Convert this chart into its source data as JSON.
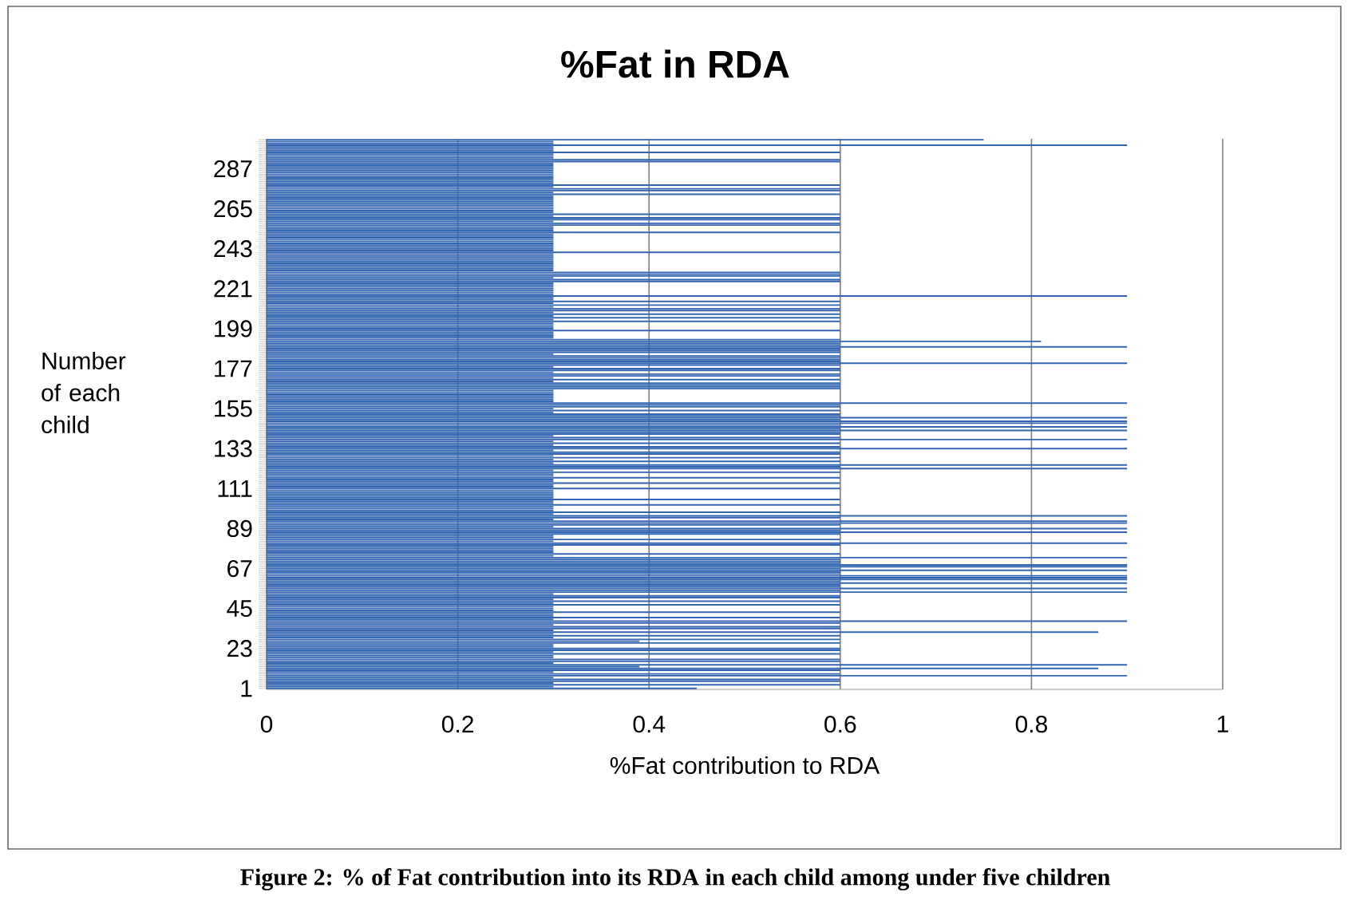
{
  "chart_data": {
    "type": "bar",
    "orientation": "horizontal",
    "title": "%Fat in RDA",
    "xlabel": "%Fat contribution to RDA",
    "ylabel": "Number of each child",
    "annotations": [
      "Figure 2: % of Fat contribution into its RDA in each child among under five children"
    ],
    "color": "#3465b0",
    "grid": "x",
    "xlim": [
      0,
      1
    ],
    "xticks": [
      0,
      0.2,
      0.4,
      0.6,
      0.8,
      1
    ],
    "categories": [
      null,
      null,
      null,
      null,
      null,
      null,
      null,
      null,
      null,
      null,
      null,
      null,
      null,
      null,
      null,
      null,
      "287",
      null,
      null,
      null,
      null,
      null,
      null,
      null,
      null,
      null,
      null,
      null,
      null,
      null,
      null,
      null,
      null,
      null,
      null,
      null,
      null,
      null,
      "265",
      null,
      null,
      null,
      null,
      null,
      null,
      null,
      null,
      null,
      null,
      null,
      null,
      null,
      null,
      null,
      null,
      null,
      null,
      null,
      null,
      null,
      "243",
      null,
      null,
      null,
      null,
      null,
      null,
      null,
      null,
      null,
      null,
      null,
      null,
      null,
      null,
      null,
      null,
      null,
      null,
      null,
      null,
      null,
      "221",
      null,
      null,
      null,
      null,
      null,
      null,
      null,
      null,
      null,
      null,
      null,
      null,
      null,
      null,
      null,
      null,
      null,
      null,
      null,
      null,
      null,
      "199",
      null,
      null,
      null,
      null,
      null,
      null,
      null,
      null,
      null,
      null,
      null,
      null,
      null,
      null,
      null,
      null,
      null,
      null,
      null,
      null,
      null,
      "177",
      null,
      null,
      null,
      null,
      null,
      null,
      null,
      null,
      null,
      null,
      null,
      null,
      null,
      null,
      null,
      null,
      null,
      null,
      null,
      null,
      null,
      "155",
      null,
      null,
      null,
      null,
      null,
      null,
      null,
      null,
      null,
      null,
      null,
      null,
      null,
      null,
      null,
      null,
      null,
      null,
      null,
      null,
      null,
      "133",
      null,
      null,
      null,
      null,
      null,
      null,
      null,
      null,
      null,
      null,
      null,
      null,
      null,
      null,
      null,
      null,
      null,
      null,
      null,
      null,
      null,
      "111",
      null,
      null,
      null,
      null,
      null,
      null,
      null,
      null,
      null,
      null,
      null,
      null,
      null,
      null,
      null,
      null,
      null,
      null,
      null,
      null,
      null,
      "89",
      null,
      null,
      null,
      null,
      null,
      null,
      null,
      null,
      null,
      null,
      null,
      null,
      null,
      null,
      null,
      null,
      null,
      null,
      null,
      null,
      null,
      "67",
      null,
      null,
      null,
      null,
      null,
      null,
      null,
      null,
      null,
      null,
      null,
      null,
      null,
      null,
      null,
      null,
      null,
      null,
      null,
      null,
      null,
      "45",
      null,
      null,
      null,
      null,
      null,
      null,
      null,
      null,
      null,
      null,
      null,
      null,
      null,
      null,
      null,
      null,
      null,
      null,
      null,
      null,
      null,
      "23",
      null,
      null,
      null,
      null,
      null,
      null,
      null,
      null,
      null,
      null,
      null,
      null,
      null,
      null,
      null,
      null,
      null,
      null,
      null,
      null,
      null,
      "1"
    ],
    "values": [
      0.75,
      0.3,
      0.3,
      0.9,
      0.3,
      0.3,
      0.3,
      0.6,
      0.3,
      0.3,
      0.3,
      0.6,
      0.6,
      0.3,
      0.3,
      0.3,
      0.3,
      0.3,
      0.3,
      0.3,
      0.3,
      0.3,
      0.3,
      0.3,
      0.3,
      0.6,
      0.3,
      0.6,
      0.6,
      0.3,
      0.6,
      0.3,
      0.3,
      0.3,
      0.3,
      0.3,
      0.3,
      0.3,
      0.3,
      0.3,
      0.3,
      0.6,
      0.3,
      0.6,
      0.6,
      0.3,
      0.6,
      0.6,
      0.3,
      0.3,
      0.3,
      0.6,
      0.3,
      0.3,
      0.3,
      0.3,
      0.3,
      0.3,
      0.3,
      0.3,
      0.3,
      0.3,
      0.6,
      0.3,
      0.3,
      0.3,
      0.3,
      0.3,
      0.3,
      0.3,
      0.3,
      0.3,
      0.3,
      0.6,
      0.6,
      0.6,
      0.3,
      0.6,
      0.6,
      0.3,
      0.3,
      0.3,
      0.3,
      0.3,
      0.3,
      0.3,
      0.9,
      0.3,
      0.3,
      0.6,
      0.3,
      0.6,
      0.3,
      0.6,
      0.6,
      0.3,
      0.6,
      0.3,
      0.6,
      0.3,
      0.6,
      0.3,
      0.3,
      0.3,
      0.3,
      0.6,
      0.3,
      0.3,
      0.3,
      0.3,
      0.6,
      0.81,
      0.6,
      0.6,
      0.9,
      0.6,
      0.6,
      0.6,
      0.3,
      0.6,
      0.6,
      0.6,
      0.6,
      0.9,
      0.6,
      0.3,
      0.6,
      0.6,
      0.3,
      0.6,
      0.6,
      0.3,
      0.6,
      0.3,
      0.6,
      0.6,
      0.6,
      0.6,
      0.3,
      0.3,
      0.3,
      0.3,
      0.3,
      0.3,
      0.3,
      0.9,
      0.6,
      0.6,
      0.3,
      0.6,
      0.3,
      0.6,
      0.6,
      0.9,
      0.6,
      0.9,
      0.9,
      0.6,
      0.9,
      0.6,
      0.9,
      0.6,
      0.6,
      0.3,
      0.6,
      0.9,
      0.3,
      0.6,
      0.3,
      0.6,
      0.9,
      0.3,
      0.6,
      0.6,
      0.3,
      0.6,
      0.3,
      0.6,
      0.3,
      0.9,
      0.6,
      0.9,
      0.3,
      0.6,
      0.3,
      0.3,
      0.6,
      0.3,
      0.3,
      0.6,
      0.3,
      0.3,
      0.6,
      0.3,
      0.3,
      0.3,
      0.3,
      0.3,
      0.6,
      0.3,
      0.3,
      0.6,
      0.3,
      0.3,
      0.3,
      0.6,
      0.3,
      0.9,
      0.6,
      0.3,
      0.9,
      0.9,
      0.6,
      0.3,
      0.9,
      0.6,
      0.9,
      0.6,
      0.3,
      0.3,
      0.6,
      0.3,
      0.9,
      0.6,
      0.3,
      0.3,
      0.3,
      0.3,
      0.6,
      0.3,
      0.9,
      0.6,
      0.6,
      0.6,
      0.9,
      0.9,
      0.6,
      0.9,
      0.6,
      0.6,
      0.9,
      0.9,
      0.9,
      0.6,
      0.9,
      0.6,
      0.6,
      0.9,
      0.6,
      0.9,
      0.3,
      0.6,
      0.6,
      0.3,
      0.6,
      0.3,
      0.6,
      0.3,
      0.3,
      0.3,
      0.6,
      0.3,
      0.3,
      0.6,
      0.3,
      0.9,
      0.6,
      0.3,
      0.6,
      0.6,
      0.3,
      0.87,
      0.3,
      0.6,
      0.3,
      0.6,
      0.39,
      0.6,
      0.3,
      0.3,
      0.6,
      0.6,
      0.3,
      0.6,
      0.3,
      0.3,
      0.6,
      0.6,
      0.3,
      0.9,
      0.39,
      0.87,
      0.6,
      0.3,
      0.6,
      0.9,
      0.3,
      0.6,
      0.6,
      0.3,
      0.6,
      0.3,
      0.45
    ]
  }
}
